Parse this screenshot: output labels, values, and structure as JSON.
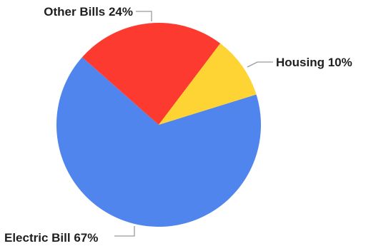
{
  "chart_data": {
    "type": "pie",
    "title": "",
    "slices": [
      {
        "label": "Electric Bill",
        "value": 67,
        "display": "Electric Bill 67%",
        "color": "#5185ee"
      },
      {
        "label": "Other Bills",
        "value": 24,
        "display": "Other Bills 24%",
        "color": "#fd3a2f"
      },
      {
        "label": "Housing",
        "value": 10,
        "display": "Housing 10%",
        "color": "#fdd433"
      }
    ],
    "legend": "none",
    "labels": "outside-with-leader-lines"
  }
}
